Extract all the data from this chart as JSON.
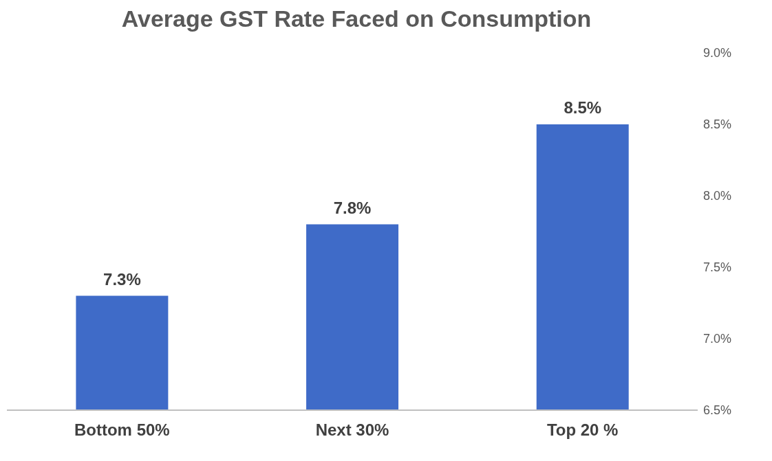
{
  "chart_data": {
    "type": "bar",
    "title": "Average GST Rate Faced on Consumption",
    "categories": [
      "Bottom 50%",
      "Next 30%",
      "Top 20 %"
    ],
    "values": [
      7.3,
      7.8,
      8.5
    ],
    "value_labels": [
      "7.3%",
      "7.8%",
      "8.5%"
    ],
    "color": "#3f6bc8",
    "ylim": [
      6.5,
      9.0
    ],
    "yticks": [
      {
        "value": 6.5,
        "label": "6.5%"
      },
      {
        "value": 7.0,
        "label": "7.0%"
      },
      {
        "value": 7.5,
        "label": "7.5%"
      },
      {
        "value": 8.0,
        "label": "8.0%"
      },
      {
        "value": 8.5,
        "label": "8.5%"
      },
      {
        "value": 9.0,
        "label": "9.0%"
      }
    ],
    "grid": false,
    "legend": false
  }
}
